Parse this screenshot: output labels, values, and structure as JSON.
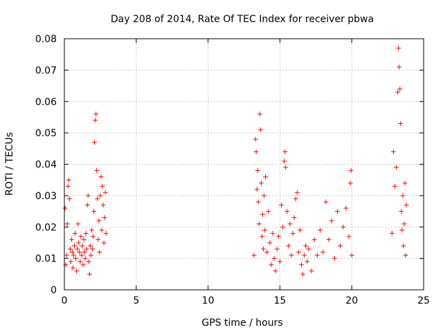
{
  "chart_data": {
    "type": "scatter",
    "title": "Day 208 of 2014, Rate Of TEC Index for receiver pbwa",
    "xlabel": "GPS time / hours",
    "ylabel": "ROTI / TECUs",
    "xlim": [
      0,
      25
    ],
    "ylim": [
      0,
      0.08
    ],
    "xticks": [
      0,
      5,
      10,
      15,
      20,
      25
    ],
    "yticks": [
      0,
      0.01,
      0.02,
      0.03,
      0.04,
      0.05,
      0.06,
      0.07,
      0.08
    ],
    "xtick_labels": [
      "0",
      "5",
      "10",
      "15",
      "20",
      "25"
    ],
    "ytick_labels": [
      "0",
      "0.01",
      "0.02",
      "0.03",
      "0.04",
      "0.05",
      "0.06",
      "0.07",
      "0.08"
    ],
    "grid": true,
    "marker": "+",
    "color": "#ff0000",
    "series": [
      {
        "name": "ROTI",
        "points": [
          [
            0.05,
            0.026
          ],
          [
            0.1,
            0.008
          ],
          [
            0.15,
            0.011
          ],
          [
            0.2,
            0.021
          ],
          [
            0.25,
            0.033
          ],
          [
            0.3,
            0.035
          ],
          [
            0.35,
            0.029
          ],
          [
            0.4,
            0.013
          ],
          [
            0.45,
            0.009
          ],
          [
            0.5,
            0.016
          ],
          [
            0.55,
            0.012
          ],
          [
            0.6,
            0.007
          ],
          [
            0.65,
            0.011
          ],
          [
            0.7,
            0.014
          ],
          [
            0.75,
            0.018
          ],
          [
            0.8,
            0.01
          ],
          [
            0.85,
            0.006
          ],
          [
            0.9,
            0.013
          ],
          [
            0.95,
            0.021
          ],
          [
            1.0,
            0.015
          ],
          [
            1.05,
            0.012
          ],
          [
            1.1,
            0.009
          ],
          [
            1.15,
            0.017
          ],
          [
            1.2,
            0.011
          ],
          [
            1.25,
            0.014
          ],
          [
            1.3,
            0.008
          ],
          [
            1.35,
            0.016
          ],
          [
            1.4,
            0.012
          ],
          [
            1.45,
            0.01
          ],
          [
            1.5,
            0.018
          ],
          [
            1.55,
            0.013
          ],
          [
            1.6,
            0.027
          ],
          [
            1.65,
            0.03
          ],
          [
            1.7,
            0.009
          ],
          [
            1.75,
            0.005
          ],
          [
            1.8,
            0.014
          ],
          [
            1.85,
            0.011
          ],
          [
            1.9,
            0.019
          ],
          [
            1.95,
            0.013
          ],
          [
            2.0,
            0.017
          ],
          [
            2.05,
            0.025
          ],
          [
            2.1,
            0.047
          ],
          [
            2.15,
            0.054
          ],
          [
            2.2,
            0.056
          ],
          [
            2.25,
            0.038
          ],
          [
            2.3,
            0.029
          ],
          [
            2.35,
            0.016
          ],
          [
            2.4,
            0.022
          ],
          [
            2.45,
            0.012
          ],
          [
            2.5,
            0.03
          ],
          [
            2.55,
            0.036
          ],
          [
            2.6,
            0.019
          ],
          [
            2.65,
            0.033
          ],
          [
            2.7,
            0.027
          ],
          [
            2.75,
            0.015
          ],
          [
            2.8,
            0.023
          ],
          [
            2.85,
            0.031
          ],
          [
            2.9,
            0.018
          ],
          [
            13.2,
            0.011
          ],
          [
            13.3,
            0.048
          ],
          [
            13.35,
            0.044
          ],
          [
            13.4,
            0.032
          ],
          [
            13.45,
            0.038
          ],
          [
            13.5,
            0.028
          ],
          [
            13.55,
            0.021
          ],
          [
            13.6,
            0.056
          ],
          [
            13.65,
            0.051
          ],
          [
            13.7,
            0.034
          ],
          [
            13.75,
            0.017
          ],
          [
            13.8,
            0.024
          ],
          [
            13.85,
            0.013
          ],
          [
            13.9,
            0.03
          ],
          [
            13.95,
            0.019
          ],
          [
            14.0,
            0.036
          ],
          [
            14.1,
            0.012
          ],
          [
            14.2,
            0.025
          ],
          [
            14.3,
            0.015
          ],
          [
            14.4,
            0.008
          ],
          [
            14.5,
            0.018
          ],
          [
            14.6,
            0.01
          ],
          [
            14.7,
            0.006
          ],
          [
            14.8,
            0.013
          ],
          [
            14.9,
            0.017
          ],
          [
            15.0,
            0.009
          ],
          [
            15.1,
            0.027
          ],
          [
            15.2,
            0.02
          ],
          [
            15.3,
            0.041
          ],
          [
            15.35,
            0.044
          ],
          [
            15.4,
            0.039
          ],
          [
            15.5,
            0.025
          ],
          [
            15.6,
            0.014
          ],
          [
            15.7,
            0.021
          ],
          [
            15.8,
            0.011
          ],
          [
            15.9,
            0.018
          ],
          [
            16.0,
            0.023
          ],
          [
            16.1,
            0.029
          ],
          [
            16.2,
            0.031
          ],
          [
            16.3,
            0.012
          ],
          [
            16.4,
            0.019
          ],
          [
            16.5,
            0.008
          ],
          [
            16.6,
            0.005
          ],
          [
            16.7,
            0.011
          ],
          [
            16.8,
            0.014
          ],
          [
            16.9,
            0.009
          ],
          [
            17.0,
            0.013
          ],
          [
            17.2,
            0.006
          ],
          [
            17.4,
            0.016
          ],
          [
            17.6,
            0.011
          ],
          [
            17.8,
            0.019
          ],
          [
            18.0,
            0.012
          ],
          [
            18.2,
            0.028
          ],
          [
            18.4,
            0.016
          ],
          [
            18.6,
            0.022
          ],
          [
            18.8,
            0.01
          ],
          [
            19.0,
            0.025
          ],
          [
            19.2,
            0.014
          ],
          [
            19.4,
            0.02
          ],
          [
            19.6,
            0.026
          ],
          [
            19.8,
            0.017
          ],
          [
            19.9,
            0.034
          ],
          [
            19.95,
            0.038
          ],
          [
            20.0,
            0.011
          ],
          [
            22.8,
            0.018
          ],
          [
            22.9,
            0.044
          ],
          [
            23.0,
            0.033
          ],
          [
            23.1,
            0.039
          ],
          [
            23.2,
            0.063
          ],
          [
            23.25,
            0.077
          ],
          [
            23.3,
            0.071
          ],
          [
            23.35,
            0.064
          ],
          [
            23.4,
            0.053
          ],
          [
            23.45,
            0.025
          ],
          [
            23.5,
            0.019
          ],
          [
            23.55,
            0.03
          ],
          [
            23.6,
            0.014
          ],
          [
            23.65,
            0.021
          ],
          [
            23.7,
            0.034
          ],
          [
            23.75,
            0.011
          ],
          [
            23.8,
            0.027
          ]
        ]
      }
    ]
  }
}
